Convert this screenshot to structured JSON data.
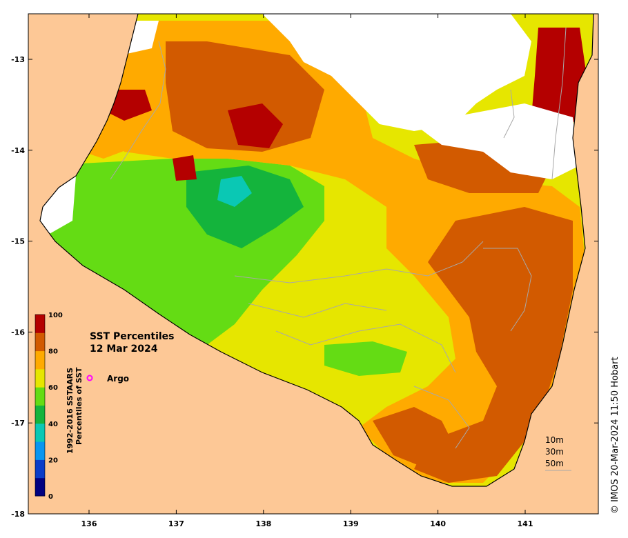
{
  "map": {
    "title_line1": "SST Percentiles",
    "title_line2": "12 Mar 2024",
    "argo_label": "Argo",
    "credit": "© IMOS 20-Mar-2024 11:50 Hobart",
    "colorbar_label_line1": "1992-2016 SSTAARS",
    "colorbar_label_line2": "Percentiles of SST",
    "colorbar_ticks": [
      "0",
      "20",
      "40",
      "60",
      "80",
      "100"
    ],
    "colorbar_colors": [
      "#000080",
      "#0a3cc8",
      "#0896f0",
      "#0ac8b4",
      "#14b43c",
      "#64dc14",
      "#e6e600",
      "#ffaa00",
      "#d25a00",
      "#b40000"
    ],
    "lon_ticks": [
      "136",
      "137",
      "138",
      "139",
      "140",
      "141"
    ],
    "lat_ticks": [
      "-13",
      "-14",
      "-15",
      "-16",
      "-17",
      "-18"
    ],
    "depth_legend": [
      "10m",
      "30m",
      "50m"
    ],
    "land_color": "#fdc896",
    "cloud_color": "#ffffff",
    "argo_color": "#ff00ff"
  }
}
